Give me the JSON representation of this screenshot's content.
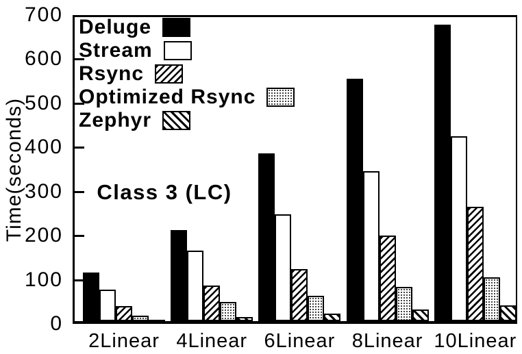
{
  "chart_data": {
    "type": "bar",
    "title": "",
    "xlabel": "",
    "ylabel": "Time(seconds)",
    "annotation": "Class 3 (LC)",
    "ylim": [
      0,
      700
    ],
    "yticks": [
      0,
      100,
      200,
      300,
      400,
      500,
      600,
      700
    ],
    "grid": false,
    "legend_position": "top-left-inside",
    "categories": [
      "2Linear",
      "4Linear",
      "6Linear",
      "8Linear",
      "10Linear"
    ],
    "series": [
      {
        "name": "Deluge",
        "pattern": "solid-black",
        "values": [
          110,
          207,
          380,
          550,
          672
        ]
      },
      {
        "name": "Stream",
        "pattern": "white",
        "values": [
          72,
          160,
          242,
          340,
          419
        ]
      },
      {
        "name": "Rsync",
        "pattern": "hatch-forward",
        "values": [
          34,
          81,
          118,
          194,
          259
        ]
      },
      {
        "name": "Optimized Rsync",
        "pattern": "dots",
        "values": [
          12,
          43,
          58,
          77,
          99
        ]
      },
      {
        "name": "Zephyr",
        "pattern": "hatch-backward",
        "values": [
          3,
          10,
          17,
          26,
          36
        ]
      }
    ],
    "colors": {
      "foreground": "#000000",
      "background": "#ffffff"
    }
  }
}
